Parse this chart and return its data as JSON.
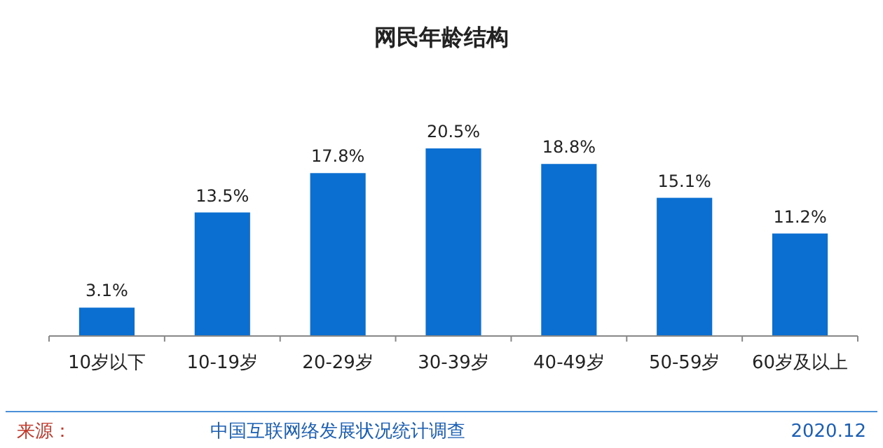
{
  "chart_data": {
    "type": "bar",
    "title": "网民年龄结构",
    "categories": [
      "10岁以下",
      "10-19岁",
      "20-29岁",
      "30-39岁",
      "40-49岁",
      "50-59岁",
      "60岁及以上"
    ],
    "values": [
      3.1,
      13.5,
      17.8,
      20.5,
      18.8,
      15.1,
      11.2
    ],
    "value_labels": [
      "3.1%",
      "13.5%",
      "17.8%",
      "20.5%",
      "18.8%",
      "15.1%",
      "11.2%"
    ],
    "color": "#0a6fd0",
    "annotations": [
      "来源：",
      "中国互联网络发展状况统计调查",
      "2020.12"
    ]
  }
}
